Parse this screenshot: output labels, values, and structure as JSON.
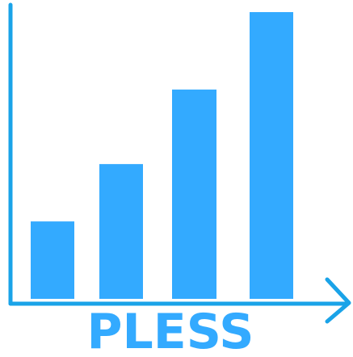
{
  "logo": {
    "wordmark": "PLESS",
    "levels": [
      0.27,
      0.47,
      0.73,
      1.0
    ],
    "colors": {
      "bars": "#33aaff",
      "axes": "#1aa3e8",
      "wordmark": "#33aaff"
    }
  }
}
